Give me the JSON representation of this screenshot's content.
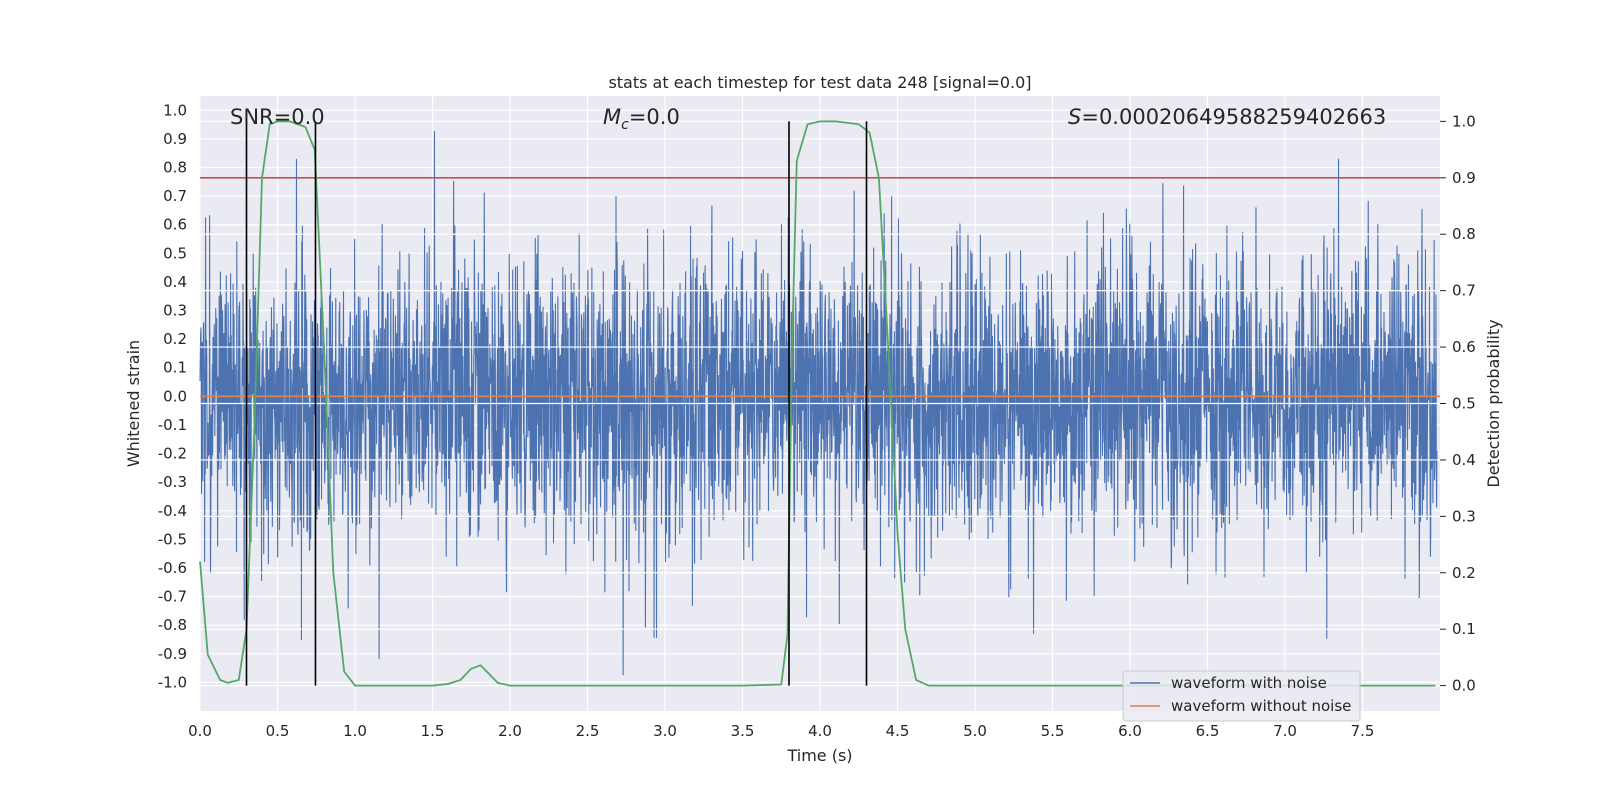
{
  "chart_data": {
    "type": "line",
    "title": "stats at each timestep for test data 248 [signal=0.0]",
    "xlabel": "Time (s)",
    "ylabel_left": "Whitened strain",
    "ylabel_right": "Detection probability",
    "xlim": [
      0.0,
      8.0
    ],
    "ylim_left": [
      -1.1,
      1.05
    ],
    "ylim_right": [
      -0.045,
      1.045
    ],
    "x_ticks": [
      "0.0",
      "0.5",
      "1.0",
      "1.5",
      "2.0",
      "2.5",
      "3.0",
      "3.5",
      "4.0",
      "4.5",
      "5.0",
      "5.5",
      "6.0",
      "6.5",
      "7.0",
      "7.5"
    ],
    "y_left_ticks": [
      "1.0",
      "0.9",
      "0.8",
      "0.7",
      "0.6",
      "0.5",
      "0.4",
      "0.3",
      "0.2",
      "0.1",
      "0.0",
      "-0.1",
      "-0.2",
      "-0.3",
      "-0.4",
      "-0.5",
      "-0.6",
      "-0.7",
      "-0.8",
      "-0.9",
      "-1.0"
    ],
    "y_right_ticks": [
      "1.0",
      "0.9",
      "0.8",
      "0.7",
      "0.6",
      "0.5",
      "0.4",
      "0.3",
      "0.2",
      "0.1",
      "0.0"
    ],
    "grid": true,
    "legend_position": "lower-right",
    "annotations": {
      "snr": "SNR=0.0",
      "mc_symbol": "M",
      "mc_sub": "c",
      "mc_value": "=0.0",
      "s_symbol": "S",
      "s_value": "=0.00020649588259402663"
    },
    "series": [
      {
        "name": "waveform with noise",
        "color": "#4c72b0",
        "axis": "left",
        "kind": "noise",
        "amplitude_range": [
          -1.0,
          0.95
        ]
      },
      {
        "name": "waveform without noise",
        "color": "#dd8452",
        "axis": "left",
        "kind": "constant",
        "value": 0.0
      },
      {
        "color": "#55a868",
        "axis": "right",
        "x": [
          0.0,
          0.05,
          0.13,
          0.18,
          0.25,
          0.3,
          0.35,
          0.4,
          0.45,
          0.5,
          0.58,
          0.68,
          0.74,
          0.8,
          0.86,
          0.93,
          1.0,
          1.2,
          1.5,
          1.6,
          1.68,
          1.75,
          1.81,
          1.85,
          1.92,
          2.0,
          2.5,
          3.0,
          3.5,
          3.75,
          3.79,
          3.82,
          3.85,
          3.92,
          4.0,
          4.1,
          4.25,
          4.32,
          4.38,
          4.45,
          4.5,
          4.55,
          4.62,
          4.7,
          5.0,
          6.0,
          7.0,
          7.97
        ],
        "y": [
          0.22,
          0.055,
          0.01,
          0.005,
          0.01,
          0.1,
          0.45,
          0.9,
          0.995,
          1.0,
          1.0,
          0.99,
          0.95,
          0.6,
          0.2,
          0.025,
          0.0,
          0.0,
          0.0,
          0.003,
          0.01,
          0.03,
          0.036,
          0.025,
          0.005,
          0.0,
          0.0,
          0.0,
          0.0,
          0.002,
          0.09,
          0.6,
          0.93,
          0.995,
          1.0,
          1.0,
          0.995,
          0.98,
          0.9,
          0.55,
          0.27,
          0.1,
          0.01,
          0.0,
          0.0,
          0.0,
          0.0,
          0.0
        ]
      },
      {
        "color": "#c44e52",
        "axis": "right",
        "kind": "threshold",
        "value": 0.9
      }
    ],
    "vlines": [
      {
        "x": 0.3,
        "color": "#000000",
        "right_from": 0.0,
        "right_to": 1.0
      },
      {
        "x": 0.745,
        "color": "#000000",
        "right_from": 0.0,
        "right_to": 1.0
      },
      {
        "x": 3.8,
        "color": "#000000",
        "right_from": 0.0,
        "right_to": 1.0
      },
      {
        "x": 4.3,
        "color": "#000000",
        "right_from": 0.0,
        "right_to": 1.0
      }
    ]
  }
}
